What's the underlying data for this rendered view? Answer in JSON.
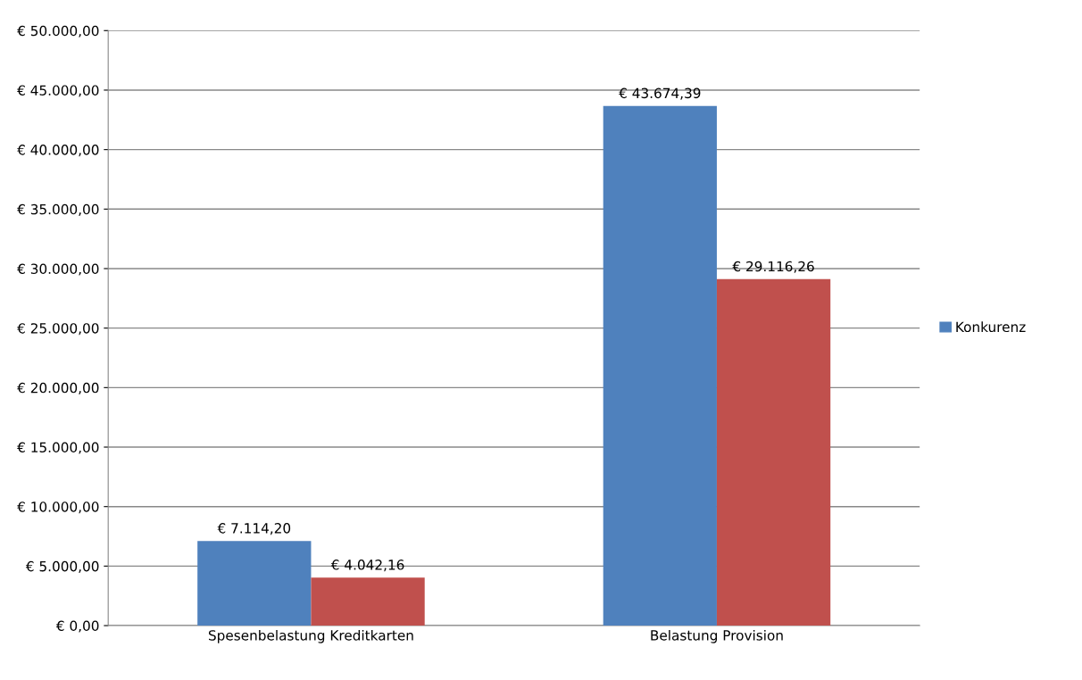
{
  "chart_data": {
    "type": "bar",
    "categories": [
      "Spesenbelastung Kreditkarten",
      "Belastung Provision"
    ],
    "series": [
      {
        "name": "Konkurenz",
        "color": "#4f81bd",
        "values": [
          7114.2,
          43674.39
        ],
        "value_labels": [
          "€ 7.114,20",
          "€ 43.674,39"
        ]
      },
      {
        "color": "#c0504d",
        "values": [
          4042.16,
          29116.26
        ],
        "value_labels": [
          "€ 4.042,16",
          "€ 29.116,26"
        ]
      }
    ],
    "ylim": [
      0,
      50000
    ],
    "yticks": [
      {
        "value": 0,
        "label": "€ 0,00"
      },
      {
        "value": 5000,
        "label": "€ 5.000,00"
      },
      {
        "value": 10000,
        "label": "€ 10.000,00"
      },
      {
        "value": 15000,
        "label": "€ 15.000,00"
      },
      {
        "value": 20000,
        "label": "€ 20.000,00"
      },
      {
        "value": 25000,
        "label": "€ 25.000,00"
      },
      {
        "value": 30000,
        "label": "€ 30.000,00"
      },
      {
        "value": 35000,
        "label": "€ 35.000,00"
      },
      {
        "value": 40000,
        "label": "€ 40.000,00"
      },
      {
        "value": 45000,
        "label": "€ 45.000,00"
      },
      {
        "value": 50000,
        "label": "€ 50.000,00"
      }
    ],
    "grid": "y",
    "legend": "right"
  }
}
